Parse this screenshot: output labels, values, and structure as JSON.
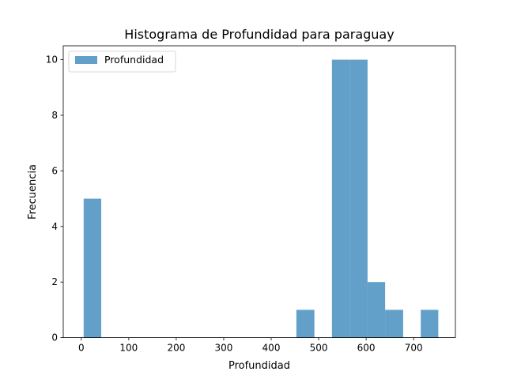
{
  "chart_data": {
    "type": "bar",
    "title": "Histograma de Profundidad para paraguay",
    "xlabel": "Profundidad",
    "ylabel": "Frecuencia",
    "xlim": [
      -38,
      788
    ],
    "ylim": [
      0,
      10.5
    ],
    "x_ticks": [
      0,
      100,
      200,
      300,
      400,
      500,
      600,
      700
    ],
    "y_ticks": [
      0,
      2,
      4,
      6,
      8,
      10
    ],
    "bar_color": "#1f77b4",
    "bar_opacity": 0.7,
    "legend_position": "upper-left",
    "series": [
      {
        "name": "Profundidad",
        "bins": [
          {
            "x0": 5,
            "x1": 42,
            "count": 5
          },
          {
            "x0": 453,
            "x1": 491,
            "count": 1
          },
          {
            "x0": 528,
            "x1": 566,
            "count": 10
          },
          {
            "x0": 566,
            "x1": 603,
            "count": 10
          },
          {
            "x0": 603,
            "x1": 640,
            "count": 2
          },
          {
            "x0": 640,
            "x1": 678,
            "count": 1
          },
          {
            "x0": 715,
            "x1": 752,
            "count": 1
          }
        ]
      }
    ]
  }
}
